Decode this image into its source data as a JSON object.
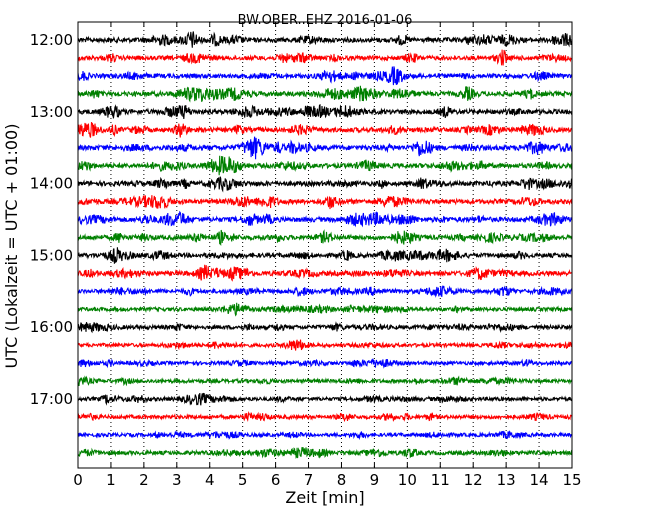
{
  "chart_data": {
    "type": "line",
    "title": "BW.OBER..EHZ 2016-01-06",
    "xlabel": "Zeit  [min]",
    "ylabel": "UTC (Lokalzeit = UTC + 01:00)",
    "xlim": [
      0,
      15
    ],
    "x_ticks": [
      0,
      1,
      2,
      3,
      4,
      5,
      6,
      7,
      8,
      9,
      10,
      11,
      12,
      13,
      14,
      15
    ],
    "x_tick_labels": [
      "0",
      "1",
      "2",
      "3",
      "4",
      "5",
      "6",
      "7",
      "8",
      "9",
      "10",
      "11",
      "12",
      "13",
      "14",
      "15"
    ],
    "grid": "vertical-dotted",
    "trace_colors": [
      "#000000",
      "#ff0000",
      "#0000ff",
      "#008000"
    ],
    "hour_ticks": [
      {
        "label": "12:00",
        "trace_index": 0
      },
      {
        "label": "13:00",
        "trace_index": 4
      },
      {
        "label": "14:00",
        "trace_index": 8
      },
      {
        "label": "15:00",
        "trace_index": 12
      },
      {
        "label": "16:00",
        "trace_index": 16
      },
      {
        "label": "17:00",
        "trace_index": 20
      }
    ],
    "series": [
      {
        "start": "12:00",
        "color": "#000000",
        "activity": 0.9
      },
      {
        "start": "12:15",
        "color": "#ff0000",
        "activity": 0.8
      },
      {
        "start": "12:30",
        "color": "#0000ff",
        "activity": 0.8
      },
      {
        "start": "12:45",
        "color": "#008000",
        "activity": 0.9
      },
      {
        "start": "13:00",
        "color": "#000000",
        "activity": 0.9
      },
      {
        "start": "13:15",
        "color": "#ff0000",
        "activity": 0.9
      },
      {
        "start": "13:30",
        "color": "#0000ff",
        "activity": 1.0
      },
      {
        "start": "13:45",
        "color": "#008000",
        "activity": 0.9
      },
      {
        "start": "14:00",
        "color": "#000000",
        "activity": 0.9
      },
      {
        "start": "14:15",
        "color": "#ff0000",
        "activity": 0.9
      },
      {
        "start": "14:30",
        "color": "#0000ff",
        "activity": 1.0
      },
      {
        "start": "14:45",
        "color": "#008000",
        "activity": 0.9
      },
      {
        "start": "15:00",
        "color": "#000000",
        "activity": 0.8
      },
      {
        "start": "15:15",
        "color": "#ff0000",
        "activity": 0.9
      },
      {
        "start": "15:30",
        "color": "#0000ff",
        "activity": 0.7
      },
      {
        "start": "15:45",
        "color": "#008000",
        "activity": 0.5
      },
      {
        "start": "16:00",
        "color": "#000000",
        "activity": 0.6
      },
      {
        "start": "16:15",
        "color": "#ff0000",
        "activity": 0.4
      },
      {
        "start": "16:30",
        "color": "#0000ff",
        "activity": 0.4
      },
      {
        "start": "16:45",
        "color": "#008000",
        "activity": 0.5
      },
      {
        "start": "17:00",
        "color": "#000000",
        "activity": 0.5
      },
      {
        "start": "17:15",
        "color": "#ff0000",
        "activity": 0.5
      },
      {
        "start": "17:30",
        "color": "#0000ff",
        "activity": 0.4
      },
      {
        "start": "17:45",
        "color": "#008000",
        "activity": 0.6
      }
    ]
  }
}
